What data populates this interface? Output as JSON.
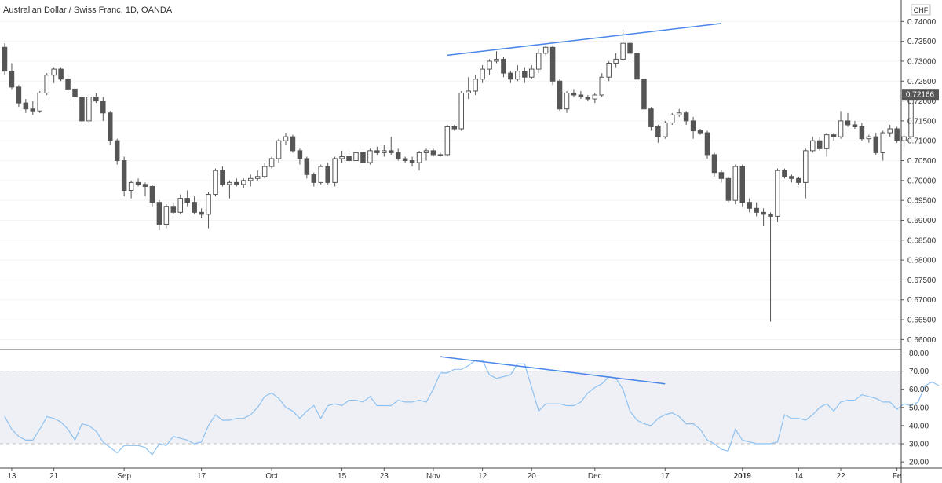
{
  "header": {
    "title": "Australian Dollar / Swiss Franc, 1D, OANDA"
  },
  "currency_badge": "CHF",
  "last_price_label": "0.72166",
  "colors": {
    "bull_body": "#ffffff",
    "bear_body": "#555555",
    "candle_outline": "#555555",
    "trendline": "#4a86e8",
    "rsi_line": "#8ec1f0",
    "rsi_band": "#eef0f5",
    "price_badge": "#555555"
  },
  "x_axis": {
    "labels": [
      "13",
      "21",
      "Sep",
      "17",
      "Oct",
      "15",
      "23",
      "Nov",
      "12",
      "20",
      "Dec",
      "17",
      "2019",
      "14",
      "22",
      "Fe"
    ],
    "label_index": [
      1,
      7,
      17,
      28,
      38,
      48,
      54,
      61,
      68,
      75,
      84,
      94,
      105,
      113,
      119,
      127
    ],
    "bold_labels": [
      "2019"
    ]
  },
  "chart_data": [
    {
      "type": "candlestick",
      "title": "Australian Dollar / Swiss Franc, 1D, OANDA",
      "ylim": [
        0.6575,
        0.7454
      ],
      "y_ticks": [
        "0.74000",
        "0.73500",
        "0.73000",
        "0.72500",
        "0.72000",
        "0.71500",
        "0.71000",
        "0.70500",
        "0.70000",
        "0.69500",
        "0.69000",
        "0.68500",
        "0.68000",
        "0.67500",
        "0.67000",
        "0.66500",
        "0.66000"
      ],
      "last_price": 0.72166,
      "ohlc": [
        [
          0.7335,
          0.7345,
          0.7265,
          0.7275
        ],
        [
          0.7275,
          0.7295,
          0.723,
          0.7235
        ],
        [
          0.7235,
          0.724,
          0.7185,
          0.7195
        ],
        [
          0.7195,
          0.7205,
          0.717,
          0.718
        ],
        [
          0.718,
          0.72,
          0.7165,
          0.7175
        ],
        [
          0.7175,
          0.7225,
          0.717,
          0.722
        ],
        [
          0.722,
          0.727,
          0.7215,
          0.7265
        ],
        [
          0.7265,
          0.7285,
          0.7245,
          0.728
        ],
        [
          0.728,
          0.7285,
          0.725,
          0.7255
        ],
        [
          0.7255,
          0.7265,
          0.722,
          0.723
        ],
        [
          0.723,
          0.7235,
          0.7185,
          0.721
        ],
        [
          0.721,
          0.7215,
          0.714,
          0.715
        ],
        [
          0.715,
          0.7215,
          0.7145,
          0.721
        ],
        [
          0.721,
          0.722,
          0.7195,
          0.72
        ],
        [
          0.72,
          0.721,
          0.715,
          0.717
        ],
        [
          0.717,
          0.7175,
          0.709,
          0.71
        ],
        [
          0.71,
          0.7105,
          0.704,
          0.705
        ],
        [
          0.705,
          0.706,
          0.696,
          0.6975
        ],
        [
          0.6975,
          0.7,
          0.6955,
          0.6995
        ],
        [
          0.6995,
          0.7005,
          0.6985,
          0.699
        ],
        [
          0.699,
          0.6995,
          0.696,
          0.6985
        ],
        [
          0.6985,
          0.699,
          0.6935,
          0.6945
        ],
        [
          0.6945,
          0.695,
          0.6875,
          0.689
        ],
        [
          0.689,
          0.694,
          0.688,
          0.6935
        ],
        [
          0.6935,
          0.6945,
          0.6915,
          0.692
        ],
        [
          0.692,
          0.6965,
          0.6915,
          0.6955
        ],
        [
          0.6955,
          0.6975,
          0.6935,
          0.6945
        ],
        [
          0.6945,
          0.696,
          0.6915,
          0.692
        ],
        [
          0.692,
          0.693,
          0.6905,
          0.6915
        ],
        [
          0.6915,
          0.697,
          0.688,
          0.6965
        ],
        [
          0.6965,
          0.703,
          0.696,
          0.7025
        ],
        [
          0.7025,
          0.7035,
          0.6985,
          0.699
        ],
        [
          0.699,
          0.7,
          0.6955,
          0.6995
        ],
        [
          0.6995,
          0.7005,
          0.6985,
          0.699
        ],
        [
          0.699,
          0.7005,
          0.698,
          0.7
        ],
        [
          0.7,
          0.7015,
          0.6985,
          0.7005
        ],
        [
          0.7005,
          0.7025,
          0.7,
          0.701
        ],
        [
          0.701,
          0.7045,
          0.7005,
          0.7035
        ],
        [
          0.7035,
          0.706,
          0.703,
          0.7055
        ],
        [
          0.7055,
          0.7105,
          0.7045,
          0.71
        ],
        [
          0.71,
          0.712,
          0.709,
          0.711
        ],
        [
          0.711,
          0.7115,
          0.707,
          0.7075
        ],
        [
          0.7075,
          0.708,
          0.704,
          0.7055
        ],
        [
          0.7055,
          0.706,
          0.7005,
          0.7015
        ],
        [
          0.7015,
          0.702,
          0.6985,
          0.6995
        ],
        [
          0.6995,
          0.704,
          0.699,
          0.7035
        ],
        [
          0.7035,
          0.7045,
          0.699,
          0.6995
        ],
        [
          0.6995,
          0.706,
          0.6985,
          0.7055
        ],
        [
          0.7055,
          0.7075,
          0.7045,
          0.706
        ],
        [
          0.706,
          0.7075,
          0.7045,
          0.705
        ],
        [
          0.705,
          0.7075,
          0.7045,
          0.707
        ],
        [
          0.707,
          0.708,
          0.704,
          0.7045
        ],
        [
          0.7045,
          0.708,
          0.704,
          0.7075
        ],
        [
          0.7075,
          0.7085,
          0.7065,
          0.707
        ],
        [
          0.707,
          0.709,
          0.706,
          0.7075
        ],
        [
          0.7075,
          0.711,
          0.7065,
          0.707
        ],
        [
          0.707,
          0.708,
          0.705,
          0.7055
        ],
        [
          0.7055,
          0.706,
          0.7045,
          0.705
        ],
        [
          0.705,
          0.706,
          0.7035,
          0.7045
        ],
        [
          0.7045,
          0.7075,
          0.7025,
          0.707
        ],
        [
          0.707,
          0.708,
          0.705,
          0.7075
        ],
        [
          0.7075,
          0.708,
          0.706,
          0.7065
        ],
        [
          0.7065,
          0.707,
          0.706,
          0.7065
        ],
        [
          0.7065,
          0.714,
          0.706,
          0.7135
        ],
        [
          0.7135,
          0.714,
          0.7125,
          0.713
        ],
        [
          0.713,
          0.7225,
          0.7125,
          0.722
        ],
        [
          0.722,
          0.726,
          0.7205,
          0.7225
        ],
        [
          0.7225,
          0.7265,
          0.7215,
          0.7255
        ],
        [
          0.7255,
          0.729,
          0.7245,
          0.728
        ],
        [
          0.728,
          0.7305,
          0.7265,
          0.73
        ],
        [
          0.73,
          0.7325,
          0.7295,
          0.7305
        ],
        [
          0.7305,
          0.731,
          0.726,
          0.727
        ],
        [
          0.727,
          0.7275,
          0.7245,
          0.7255
        ],
        [
          0.7255,
          0.729,
          0.725,
          0.7275
        ],
        [
          0.7275,
          0.7285,
          0.7245,
          0.726
        ],
        [
          0.726,
          0.729,
          0.7255,
          0.728
        ],
        [
          0.728,
          0.733,
          0.727,
          0.732
        ],
        [
          0.732,
          0.734,
          0.7315,
          0.7335
        ],
        [
          0.7335,
          0.734,
          0.724,
          0.725
        ],
        [
          0.725,
          0.7255,
          0.7175,
          0.718
        ],
        [
          0.718,
          0.7225,
          0.717,
          0.722
        ],
        [
          0.722,
          0.723,
          0.721,
          0.7215
        ],
        [
          0.7215,
          0.7225,
          0.7205,
          0.721
        ],
        [
          0.721,
          0.7215,
          0.72,
          0.7205
        ],
        [
          0.7205,
          0.722,
          0.7195,
          0.7215
        ],
        [
          0.7215,
          0.727,
          0.721,
          0.726
        ],
        [
          0.726,
          0.73,
          0.725,
          0.7295
        ],
        [
          0.7295,
          0.732,
          0.7285,
          0.7305
        ],
        [
          0.7305,
          0.738,
          0.73,
          0.7345
        ],
        [
          0.7345,
          0.7355,
          0.731,
          0.732
        ],
        [
          0.732,
          0.7325,
          0.7245,
          0.7255
        ],
        [
          0.7255,
          0.726,
          0.7175,
          0.718
        ],
        [
          0.718,
          0.7185,
          0.7125,
          0.7135
        ],
        [
          0.7135,
          0.714,
          0.7095,
          0.711
        ],
        [
          0.711,
          0.715,
          0.7105,
          0.7145
        ],
        [
          0.7145,
          0.717,
          0.714,
          0.7165
        ],
        [
          0.7165,
          0.718,
          0.716,
          0.717
        ],
        [
          0.717,
          0.7175,
          0.714,
          0.715
        ],
        [
          0.715,
          0.716,
          0.7105,
          0.7125
        ],
        [
          0.7125,
          0.713,
          0.7115,
          0.712
        ],
        [
          0.712,
          0.7125,
          0.7055,
          0.7065
        ],
        [
          0.7065,
          0.707,
          0.701,
          0.702
        ],
        [
          0.702,
          0.7025,
          0.6995,
          0.7005
        ],
        [
          0.7005,
          0.701,
          0.6945,
          0.695
        ],
        [
          0.695,
          0.704,
          0.694,
          0.7035
        ],
        [
          0.7035,
          0.704,
          0.6935,
          0.6945
        ],
        [
          0.6945,
          0.6955,
          0.692,
          0.693
        ],
        [
          0.693,
          0.6945,
          0.691,
          0.692
        ],
        [
          0.692,
          0.693,
          0.6885,
          0.6915
        ],
        [
          0.6915,
          0.692,
          0.6645,
          0.691
        ],
        [
          0.691,
          0.703,
          0.6895,
          0.7025
        ],
        [
          0.7025,
          0.703,
          0.7005,
          0.701
        ],
        [
          0.701,
          0.7015,
          0.6995,
          0.7005
        ],
        [
          0.7005,
          0.701,
          0.699,
          0.6995
        ],
        [
          0.6995,
          0.708,
          0.6955,
          0.7075
        ],
        [
          0.7075,
          0.711,
          0.707,
          0.71
        ],
        [
          0.71,
          0.711,
          0.7075,
          0.708
        ],
        [
          0.708,
          0.712,
          0.706,
          0.7115
        ],
        [
          0.7115,
          0.712,
          0.71,
          0.711
        ],
        [
          0.711,
          0.7175,
          0.7105,
          0.715
        ],
        [
          0.715,
          0.717,
          0.7135,
          0.714
        ],
        [
          0.714,
          0.715,
          0.713,
          0.7135
        ],
        [
          0.7135,
          0.7145,
          0.71,
          0.7105
        ],
        [
          0.7105,
          0.7115,
          0.7095,
          0.711
        ],
        [
          0.711,
          0.712,
          0.7065,
          0.707
        ],
        [
          0.707,
          0.7125,
          0.705,
          0.712
        ],
        [
          0.712,
          0.714,
          0.711,
          0.713
        ],
        [
          0.713,
          0.7135,
          0.7095,
          0.71
        ],
        [
          0.71,
          0.7115,
          0.7085,
          0.711
        ],
        [
          0.711,
          0.7215,
          0.7105,
          0.721
        ],
        [
          0.721,
          0.724,
          0.72,
          0.7225
        ],
        [
          0.7225,
          0.723,
          0.7205,
          0.72166
        ]
      ],
      "trendline": {
        "from": [
          63,
          0.7315
        ],
        "to": [
          102,
          0.7395
        ]
      }
    },
    {
      "type": "line",
      "ylim": [
        16.6,
        81.5
      ],
      "y_ticks": [
        "80.00",
        "70.00",
        "60.00",
        "50.00",
        "40.00",
        "30.00",
        "20.00"
      ],
      "band": [
        30,
        70
      ],
      "values": [
        45,
        38,
        34,
        32,
        32,
        38,
        45,
        44,
        42,
        38,
        32,
        41,
        40,
        37,
        31,
        28,
        25,
        29,
        29,
        29,
        28,
        24,
        30,
        29,
        34,
        33,
        32,
        30,
        31,
        40,
        46,
        43,
        43,
        44,
        44,
        46,
        50,
        56,
        58,
        55,
        50,
        48,
        44,
        48,
        51,
        44,
        51,
        52,
        51,
        54,
        54,
        53,
        56,
        51,
        51,
        51,
        54,
        53,
        53,
        54,
        53,
        60,
        69,
        69,
        71,
        71,
        73,
        76,
        76,
        68,
        66,
        67,
        68,
        74,
        74,
        61,
        48,
        52,
        52,
        52,
        51,
        51,
        53,
        58,
        61,
        63,
        67,
        66,
        60,
        48,
        43,
        41,
        40,
        44,
        46,
        47,
        45,
        41,
        41,
        38,
        32,
        30,
        27,
        26,
        38,
        32,
        31,
        30,
        30,
        30,
        31,
        46,
        44,
        44,
        43,
        46,
        50,
        52,
        48,
        53,
        54,
        54,
        57,
        56,
        55,
        53,
        53,
        49,
        52,
        51,
        53,
        62,
        64,
        62
      ],
      "trendline": {
        "from": [
          62,
          78
        ],
        "to": [
          94,
          63
        ]
      }
    }
  ]
}
